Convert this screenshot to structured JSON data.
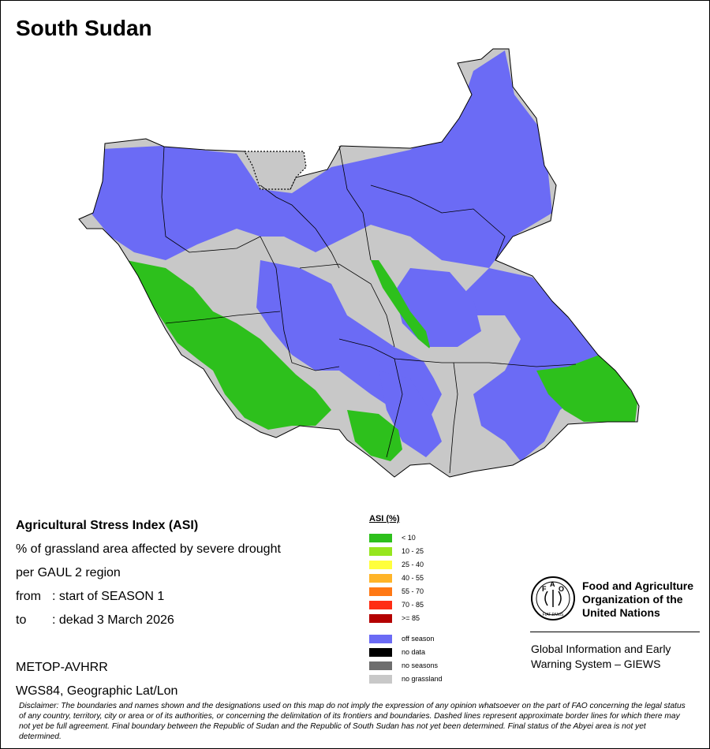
{
  "map": {
    "title": "South Sudan",
    "colors": {
      "no_grassland": "#c8c8c8",
      "off_season": "#6b6bf5",
      "low_stress": "#2dc01c",
      "border": "#000000"
    }
  },
  "info": {
    "title": "Agricultural Stress Index (ASI)",
    "line1": "% of grassland area affected by severe drought",
    "line2": "per GAUL 2 region",
    "from_key": "from",
    "from_value": ": start of SEASON 1",
    "to_key": "to",
    "to_value": ": dekad 3 March 2026",
    "sensor": "METOP-AVHRR",
    "projection": "WGS84, Geographic Lat/Lon"
  },
  "legend": {
    "title": "ASI (%)",
    "items": [
      {
        "label": "< 10",
        "color": "#2dc01c"
      },
      {
        "label": "10 - 25",
        "color": "#96e61e"
      },
      {
        "label": "25 - 40",
        "color": "#ffff3c"
      },
      {
        "label": "40 - 55",
        "color": "#ffb428"
      },
      {
        "label": "55 - 70",
        "color": "#ff7814"
      },
      {
        "label": "70 - 85",
        "color": "#ff2d14"
      },
      {
        "label": ">= 85",
        "color": "#b40000"
      }
    ],
    "extra": [
      {
        "label": "off season",
        "color": "#6b6bf5"
      },
      {
        "label": "no data",
        "color": "#000000"
      },
      {
        "label": "no seasons",
        "color": "#6e6e6e"
      },
      {
        "label": "no grassland",
        "color": "#c8c8c8"
      }
    ]
  },
  "fao": {
    "logo_letters": [
      "F",
      "A",
      "O"
    ],
    "logo_motto": "FIAT PANIS",
    "name_line1": "Food and Agriculture",
    "name_line2": "Organization of the",
    "name_line3": "United Nations"
  },
  "giews": {
    "line1": "Global Information and Early",
    "line2": "Warning System – GIEWS"
  },
  "disclaimer": "Disclaimer: The boundaries and names shown and the designations used on this map do not imply the expression of any opinion whatsoever on the part of FAO concerning the legal status of any country, territory, city or area or of its authorities, or concerning the delimitation of its frontiers and boundaries. Dashed lines represent approximate border lines for which there may not yet be full agreement.  Final boundary between the Republic of Sudan and the Republic of South Sudan has not yet been determined. Final status of the Abyei area is not yet determined."
}
